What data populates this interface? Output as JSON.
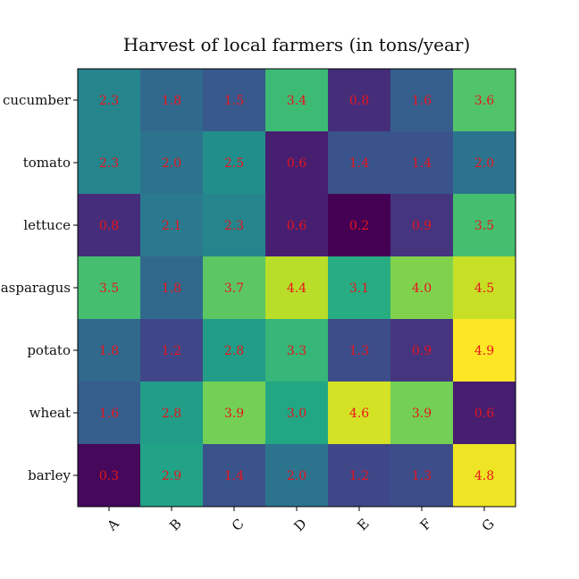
{
  "chart_data": {
    "type": "heatmap",
    "title": "Harvest of local farmers (in tons/year)",
    "xlabel": "",
    "ylabel": "",
    "x_categories": [
      "A",
      "B",
      "C",
      "D",
      "E",
      "F",
      "G"
    ],
    "y_categories": [
      "cucumber",
      "tomato",
      "lettuce",
      "asparagus",
      "potato",
      "wheat",
      "barley"
    ],
    "values": [
      [
        2.3,
        1.8,
        1.5,
        3.4,
        0.8,
        1.6,
        3.6
      ],
      [
        2.3,
        2.0,
        2.5,
        0.6,
        1.4,
        1.4,
        2.0
      ],
      [
        0.8,
        2.1,
        2.3,
        0.6,
        0.2,
        0.9,
        3.5
      ],
      [
        3.5,
        1.8,
        3.7,
        4.4,
        3.1,
        4.0,
        4.5
      ],
      [
        1.8,
        1.2,
        2.8,
        3.3,
        1.3,
        0.9,
        4.9
      ],
      [
        1.6,
        2.8,
        3.9,
        3.0,
        4.6,
        3.9,
        0.6
      ],
      [
        0.3,
        2.9,
        1.4,
        2.0,
        1.2,
        1.3,
        4.8
      ]
    ],
    "colormap": "viridis",
    "annotation_color": "#e8141c",
    "x_tick_rotation_deg": 45,
    "grid": false,
    "legend": "none"
  }
}
